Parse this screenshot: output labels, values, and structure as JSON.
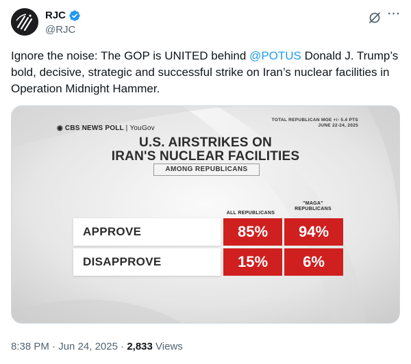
{
  "author": {
    "display_name": "RJC",
    "handle": "@RJC",
    "verified_color": "#1d9bf0"
  },
  "tweet": {
    "text_before": "Ignore the noise: The GOP is UNITED behind ",
    "mention": "@POTUS",
    "text_after": " Donald J. Trump’s bold, decisive, strategic and successful strike on Iran’s nuclear facilities in Operation Midnight Hammer."
  },
  "icons": {
    "grok": "grok-icon",
    "more": "more-icon",
    "verified": "verified-badge-icon"
  },
  "media": {
    "source": "CBS NEWS POLL",
    "partner": "YouGov",
    "moe_line1": "TOTAL REPUBLICAN MOE +/- 5.4 PTS",
    "moe_line2": "JUNE 22-24, 2025",
    "title_line1": "U.S. AIRSTRIKES ON",
    "title_line2": "IRAN'S NUCLEAR FACILITIES",
    "subtitle": "AMONG REPUBLICANS",
    "accent_color": "#d01f1f"
  },
  "chart_data": {
    "type": "table",
    "title": "U.S. AIRSTRIKES ON IRAN'S NUCLEAR FACILITIES",
    "subtitle": "AMONG REPUBLICANS",
    "columns": [
      "ALL REPUBLICANS",
      "\"MAGA\" REPUBLICANS"
    ],
    "column_lines": [
      [
        "ALL REPUBLICANS"
      ],
      [
        "\"MAGA\"",
        "REPUBLICANS"
      ]
    ],
    "rows": [
      {
        "label": "APPROVE",
        "values": [
          "85%",
          "94%"
        ]
      },
      {
        "label": "DISAPPROVE",
        "values": [
          "15%",
          "6%"
        ]
      }
    ]
  },
  "footer": {
    "time": "8:38 PM",
    "date": "Jun 24, 2025",
    "views_count": "2,833",
    "views_label": "Views",
    "separator": "·"
  }
}
